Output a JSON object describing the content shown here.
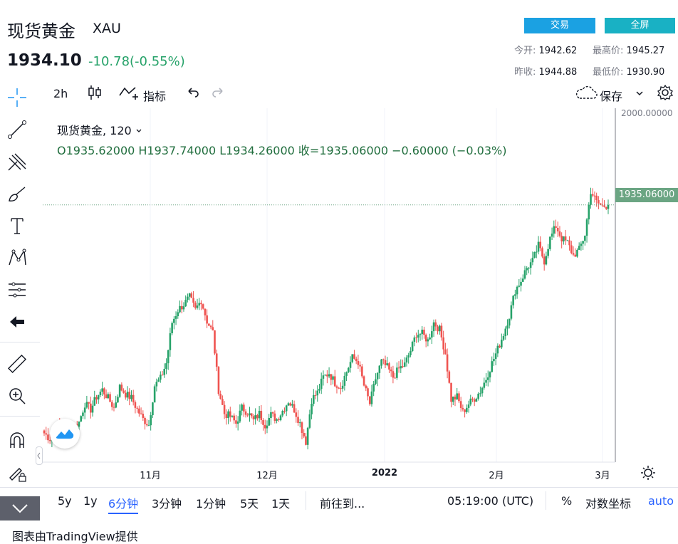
{
  "header": {
    "title": "现货黄金",
    "symbol": "XAU",
    "price": "1934.10",
    "change": "-10.78(-0.55%)",
    "trade_label": "交易",
    "fullscreen_label": "全屏",
    "stats": {
      "open_label": "今开:",
      "open_value": "1942.62",
      "high_label": "最高价:",
      "high_value": "1945.27",
      "prev_close_label": "昨收:",
      "prev_close_value": "1944.88",
      "low_label": "最低价:",
      "low_value": "1930.90"
    }
  },
  "toolbar": {
    "interval": "2h",
    "indicators_label": "指标",
    "save_label": "保存"
  },
  "legend": {
    "series_title": "现货黄金, 120",
    "ohlc": "O1935.62000  H1937.74000  L1934.26000  收=1935.06000  −0.60000 (−0.03%)"
  },
  "bottom_bar": {
    "ranges": [
      "5y",
      "1y",
      "6分钟",
      "3分钟",
      "1分钟",
      "5天",
      "1天"
    ],
    "active_range": "6分钟",
    "goto_label": "前往到...",
    "time_label": "05:19:00 (UTC)",
    "percent_label": "%",
    "log_label": "对数坐标",
    "auto_label": "auto"
  },
  "footer": "图表由TradingView提供",
  "colors": {
    "up": "#26a269",
    "down": "#ef5350",
    "last_price_label": "#6ba583",
    "accent": "#2962ff"
  },
  "chart_data": {
    "type": "candlestick",
    "x_tick_labels": [
      "11月",
      "12月",
      "2022",
      "2月",
      "3月"
    ],
    "y_tick_labels": [
      "2000.00000"
    ],
    "last_price": "1935.06000",
    "ylim": [
      1760,
      2000
    ],
    "series": [
      {
        "name": "现货黄金",
        "close_path": [
          1772,
          1768,
          1774,
          1779,
          1767,
          1776,
          1780,
          1793,
          1789,
          1798,
          1803,
          1797,
          1790,
          1805,
          1800,
          1797,
          1789,
          1782,
          1778,
          1806,
          1811,
          1822,
          1851,
          1860,
          1864,
          1869,
          1860,
          1867,
          1852,
          1844,
          1803,
          1786,
          1784,
          1779,
          1790,
          1787,
          1781,
          1786,
          1778,
          1785,
          1782,
          1788,
          1795,
          1789,
          1779,
          1766,
          1796,
          1801,
          1812,
          1815,
          1808,
          1805,
          1816,
          1826,
          1823,
          1806,
          1793,
          1811,
          1823,
          1819,
          1812,
          1818,
          1821,
          1831,
          1843,
          1843,
          1838,
          1851,
          1846,
          1829,
          1796,
          1798,
          1787,
          1793,
          1797,
          1802,
          1811,
          1822,
          1832,
          1843,
          1856,
          1874,
          1881,
          1890,
          1895,
          1906,
          1895,
          1911,
          1920,
          1911,
          1908,
          1899,
          1903,
          1914,
          1945,
          1937,
          1934,
          1935
        ]
      }
    ]
  }
}
